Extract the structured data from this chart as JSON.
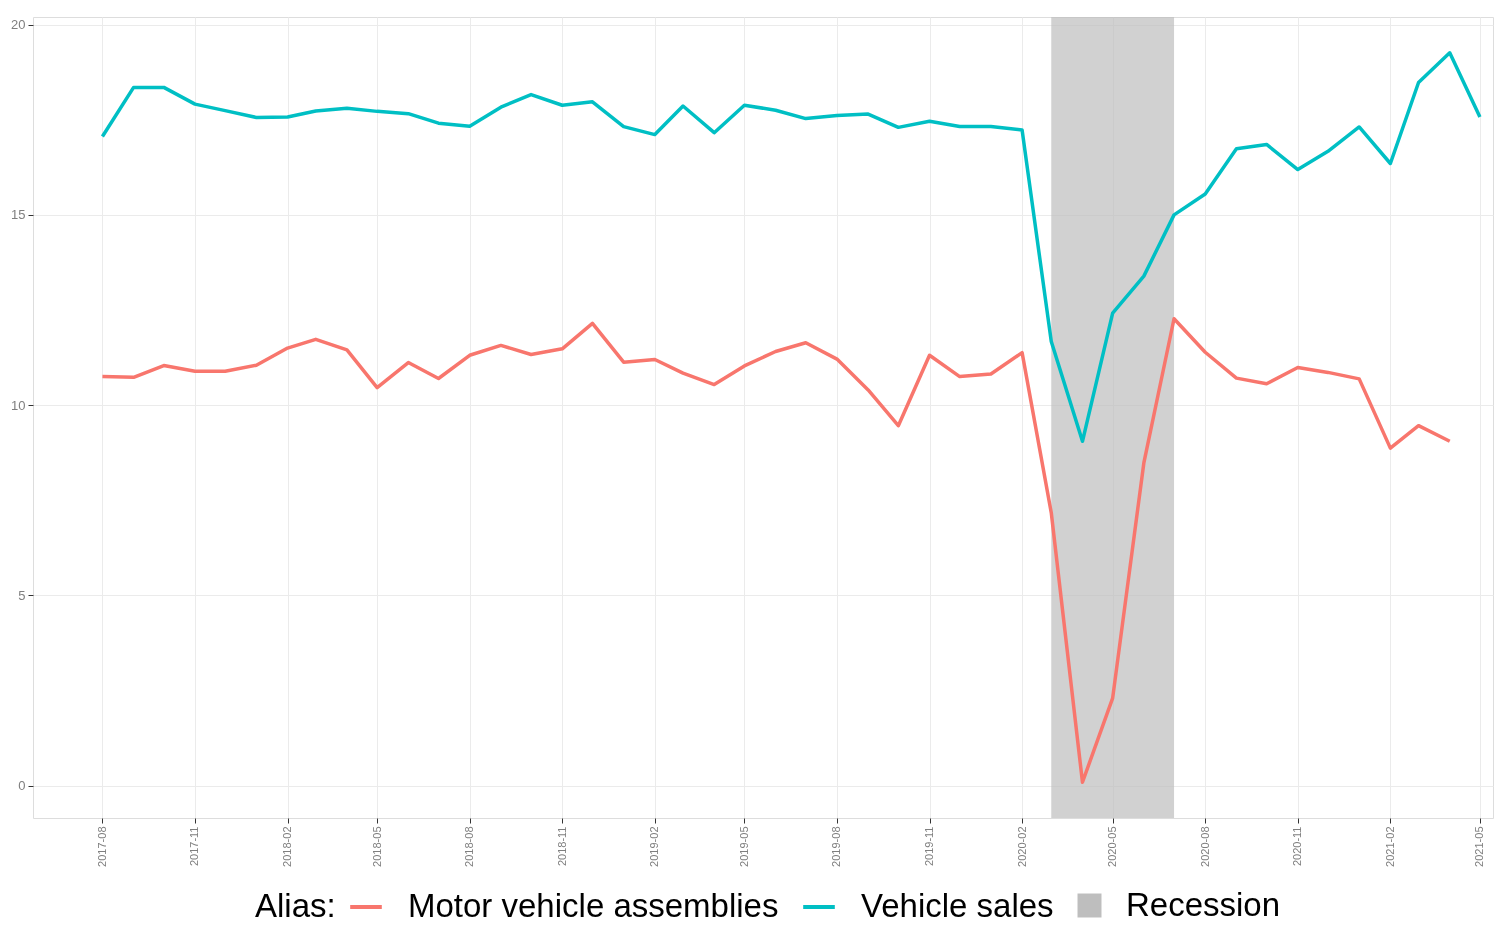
{
  "chart_data": {
    "type": "line",
    "legend_title": "Alias:",
    "x": [
      "2017-08",
      "2017-09",
      "2017-10",
      "2017-11",
      "2017-12",
      "2018-01",
      "2018-02",
      "2018-03",
      "2018-04",
      "2018-05",
      "2018-06",
      "2018-07",
      "2018-08",
      "2018-09",
      "2018-10",
      "2018-11",
      "2018-12",
      "2019-01",
      "2019-02",
      "2019-03",
      "2019-04",
      "2019-05",
      "2019-06",
      "2019-07",
      "2019-08",
      "2019-09",
      "2019-10",
      "2019-11",
      "2019-12",
      "2020-01",
      "2020-02",
      "2020-03",
      "2020-04",
      "2020-05",
      "2020-06",
      "2020-07",
      "2020-08",
      "2020-09",
      "2020-10",
      "2020-11",
      "2020-12",
      "2021-01",
      "2021-02",
      "2021-03",
      "2021-04",
      "2021-05"
    ],
    "series": [
      {
        "name": "Motor vehicle assemblies",
        "color": "#f8766d",
        "values": [
          10.75,
          10.73,
          11.04,
          10.89,
          10.89,
          11.05,
          11.5,
          11.73,
          11.45,
          10.46,
          11.12,
          10.7,
          11.31,
          11.57,
          11.33,
          11.48,
          12.15,
          11.13,
          11.2,
          10.84,
          10.54,
          11.03,
          11.41,
          11.64,
          11.21,
          10.4,
          9.46,
          11.31,
          10.75,
          10.82,
          11.38,
          7.17,
          0.09,
          2.3,
          8.48,
          12.27,
          11.39,
          10.71,
          10.56,
          10.99,
          10.86,
          10.69,
          8.87,
          9.46,
          9.05,
          null
        ]
      },
      {
        "name": "Vehicle sales",
        "color": "#00bfc4",
        "values": [
          17.06,
          18.35,
          18.35,
          17.91,
          17.74,
          17.56,
          17.57,
          17.73,
          17.8,
          17.72,
          17.66,
          17.41,
          17.33,
          17.83,
          18.16,
          17.88,
          17.97,
          17.32,
          17.11,
          17.86,
          17.16,
          17.88,
          17.75,
          17.53,
          17.61,
          17.65,
          17.3,
          17.46,
          17.32,
          17.32,
          17.23,
          11.67,
          9.05,
          12.42,
          13.39,
          15.0,
          15.55,
          16.74,
          16.85,
          16.19,
          16.67,
          17.31,
          16.35,
          18.48,
          19.26,
          17.57
        ]
      }
    ],
    "xlim": [
      "2017-05-24",
      "2021-05-14"
    ],
    "ylim": [
      -0.85,
      20.2
    ],
    "xticks": [
      "2017-08",
      "2017-11",
      "2018-02",
      "2018-05",
      "2018-08",
      "2018-11",
      "2019-02",
      "2019-05",
      "2019-08",
      "2019-11",
      "2020-02",
      "2020-05",
      "2020-08",
      "2020-11",
      "2021-02",
      "2021-05"
    ],
    "yticks": [
      0,
      5,
      10,
      15,
      20
    ],
    "bands": [
      {
        "axis": "x",
        "from": "2020-03",
        "to": "2020-07",
        "label": "Recession",
        "color": "#bebebe"
      }
    ],
    "grid": true,
    "legend": "bottom",
    "line_style": "solid"
  }
}
